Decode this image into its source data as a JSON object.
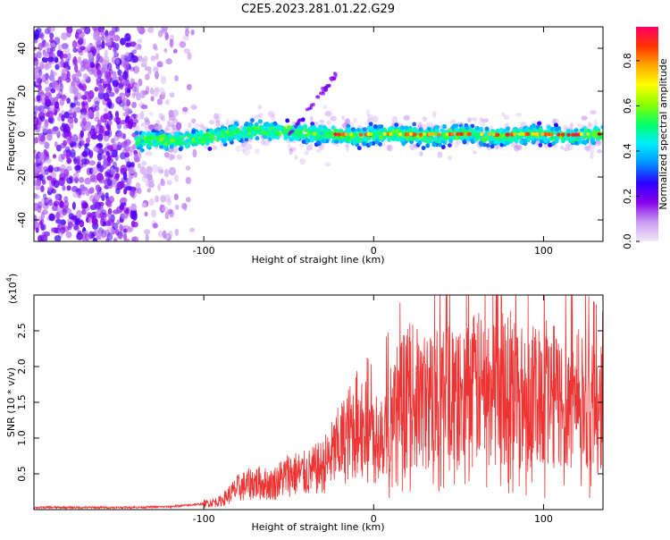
{
  "title": "C2E5.2023.281.01.22.G29",
  "chart_data": [
    {
      "type": "heatmap",
      "xlabel": "Height of straight line (km)",
      "ylabel": "Frequency (Hz)",
      "xlim": [
        -200,
        135
      ],
      "ylim": [
        -50,
        50
      ],
      "x_ticks": [
        -100,
        0,
        100
      ],
      "x_tick_labels": [
        "-100",
        "0",
        "100"
      ],
      "y_ticks": [
        -40,
        -20,
        0,
        20,
        40
      ],
      "y_tick_labels": [
        "-40",
        "-20",
        "0",
        "20",
        "40"
      ],
      "colorbar": {
        "label": "Normalized spectral amplitude",
        "range": [
          0.0,
          0.95
        ],
        "ticks": [
          0.0,
          0.2,
          0.4,
          0.6,
          0.8
        ],
        "tick_labels": [
          "0.0",
          "0.2",
          "0.4",
          "0.6",
          "0.8"
        ],
        "colormap": [
          "#f0e8f8",
          "#c89cf0",
          "#8800ee",
          "#2a00ff",
          "#0090ff",
          "#00eeff",
          "#00ff66",
          "#88ff00",
          "#ffff00",
          "#ffaa00",
          "#ff3300",
          "#ff0066"
        ]
      },
      "features": {
        "noise_region_x": [
          -200,
          -115
        ],
        "band_start_x": -140,
        "band_center_hz": 0,
        "band_halfwidth_hz": 4,
        "spur_x": [
          -50,
          -22
        ],
        "spur_y": [
          0,
          28
        ]
      }
    },
    {
      "type": "line",
      "xlabel": "Height of straight line (km)",
      "ylabel": "SNR (10 * v/v)",
      "y_multiplier": "(x10",
      "y_multiplier_exp": "4",
      "y_multiplier_close": ")",
      "xlim": [
        -200,
        135
      ],
      "ylim": [
        0,
        3.0
      ],
      "x_ticks": [
        -100,
        0,
        100
      ],
      "x_tick_labels": [
        "-100",
        "0",
        "100"
      ],
      "y_ticks": [
        0.5,
        1.0,
        1.5,
        2.0,
        2.5
      ],
      "y_tick_labels": [
        "0.5",
        "1.0",
        "1.5",
        "2.0",
        "2.5"
      ],
      "color": "#ee3333",
      "series": [
        {
          "x": [
            -200,
            -150,
            -120,
            -100,
            -90,
            -80,
            -70,
            -60,
            -50,
            -40,
            -30,
            -20,
            -10,
            0,
            10,
            20,
            30,
            40,
            50,
            60,
            70,
            80,
            90,
            100,
            110,
            120,
            135
          ],
          "y": [
            0.03,
            0.03,
            0.04,
            0.08,
            0.12,
            0.3,
            0.38,
            0.35,
            0.5,
            0.5,
            0.6,
            0.9,
            1.2,
            1.0,
            1.3,
            1.6,
            1.5,
            1.6,
            1.5,
            1.7,
            1.6,
            1.8,
            1.5,
            1.7,
            1.5,
            1.6,
            1.4
          ]
        }
      ]
    }
  ]
}
